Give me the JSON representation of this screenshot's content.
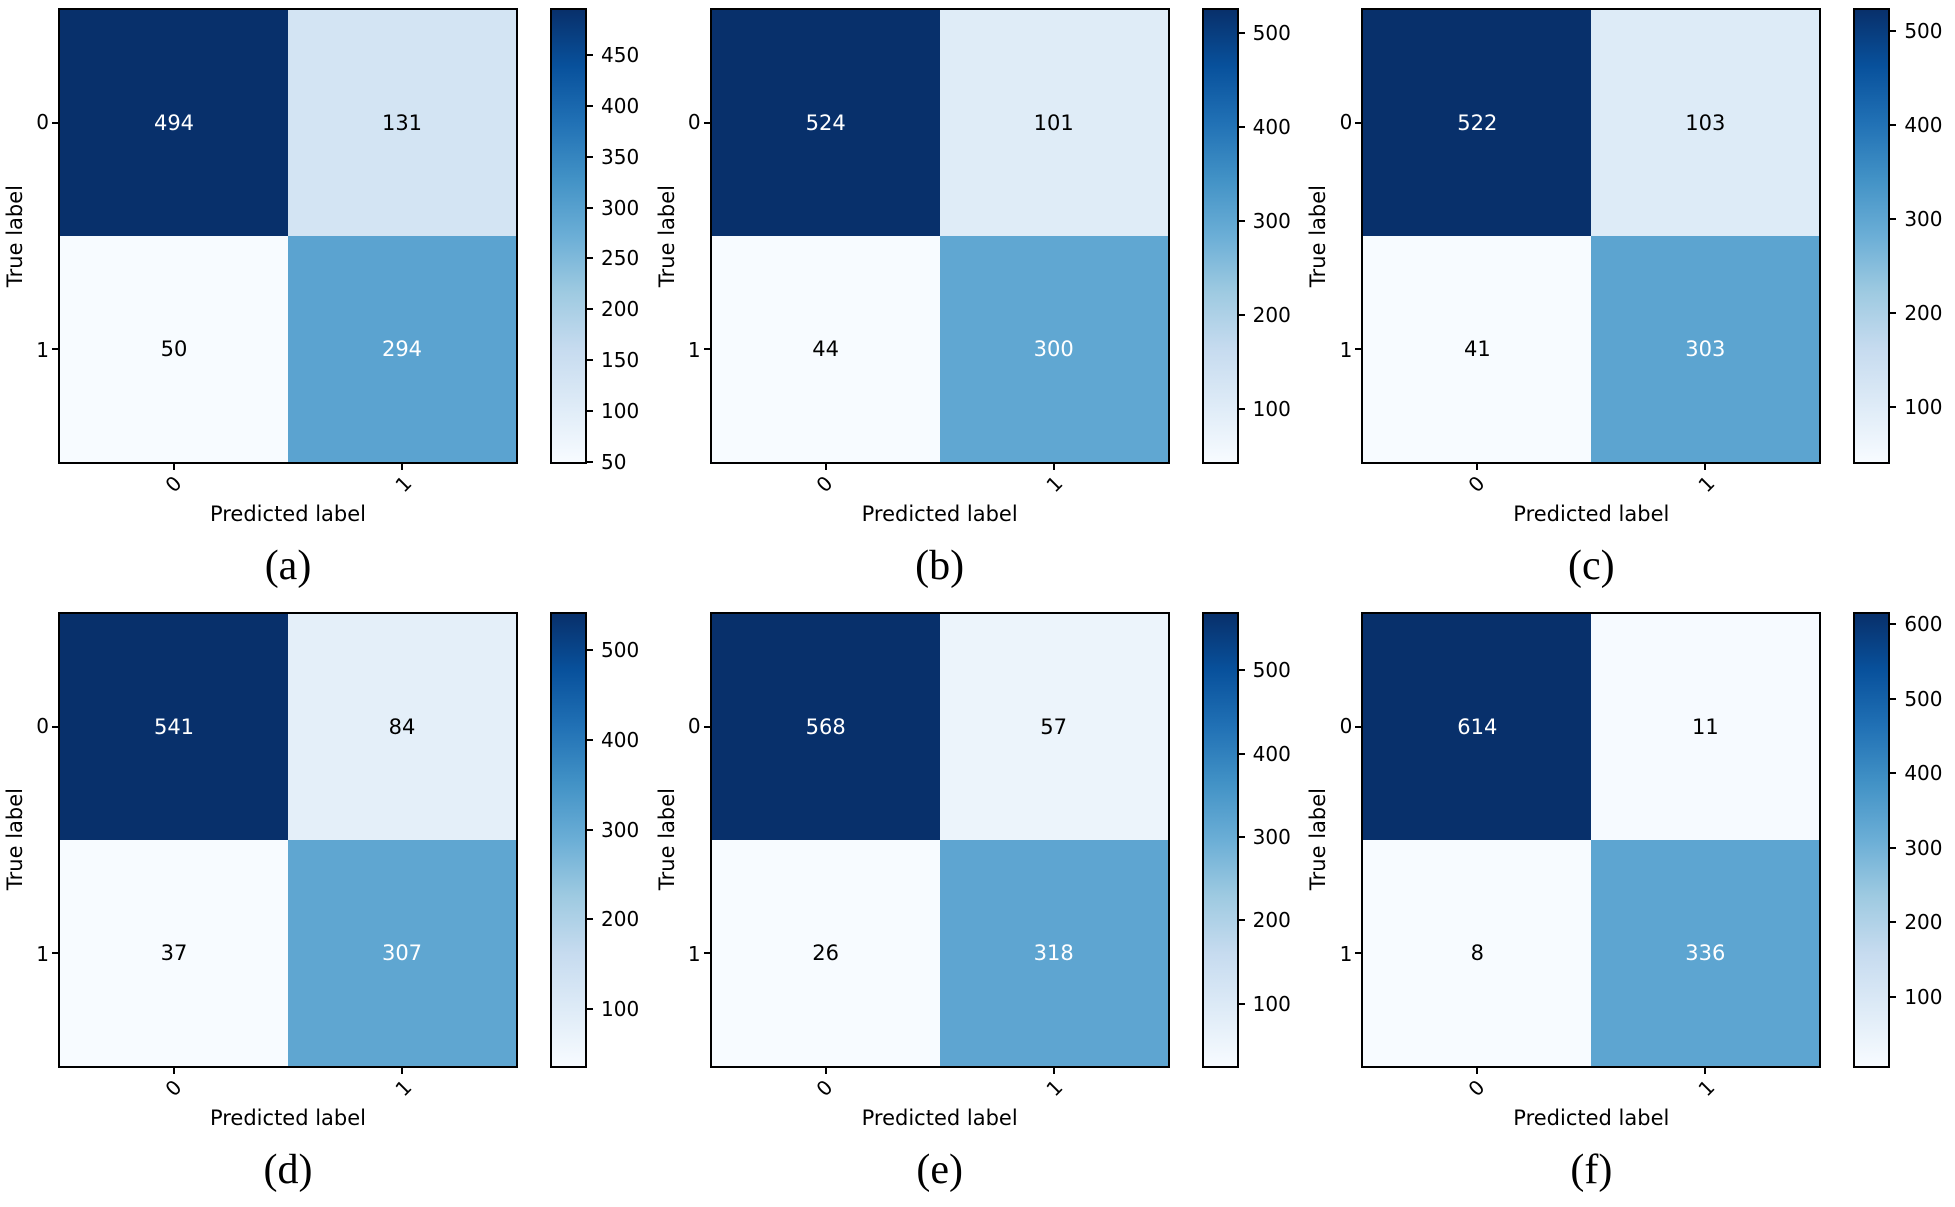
{
  "figure": {
    "background": "#ffffff",
    "colormap": "Blues",
    "colormap_stops": [
      "#f7fbff",
      "#deebf7",
      "#c6dbef",
      "#9ecae1",
      "#6baed6",
      "#4292c6",
      "#2171b5",
      "#08519c",
      "#08306b"
    ],
    "frame_color": "#000000",
    "text_color_light": "#ffffff",
    "text_color_dark": "#000000"
  },
  "chart_data": [
    {
      "type": "heatmap",
      "caption": "(a)",
      "xlabel": "Predicted label",
      "ylabel": "True label",
      "x_tick_labels": [
        "0",
        "1"
      ],
      "y_tick_labels": [
        "0",
        "1"
      ],
      "matrix": [
        [
          494,
          131
        ],
        [
          50,
          294
        ]
      ],
      "vmin": 50,
      "vmax": 494,
      "colorbar_ticks": [
        50,
        100,
        150,
        200,
        250,
        300,
        350,
        400,
        450
      ],
      "legend_position": "right",
      "grid": false
    },
    {
      "type": "heatmap",
      "caption": "(b)",
      "xlabel": "Predicted label",
      "ylabel": "True label",
      "x_tick_labels": [
        "0",
        "1"
      ],
      "y_tick_labels": [
        "0",
        "1"
      ],
      "matrix": [
        [
          524,
          101
        ],
        [
          44,
          300
        ]
      ],
      "vmin": 44,
      "vmax": 524,
      "colorbar_ticks": [
        100,
        200,
        300,
        400,
        500
      ],
      "legend_position": "right",
      "grid": false
    },
    {
      "type": "heatmap",
      "caption": "(c)",
      "xlabel": "Predicted label",
      "ylabel": "True label",
      "x_tick_labels": [
        "0",
        "1"
      ],
      "y_tick_labels": [
        "0",
        "1"
      ],
      "matrix": [
        [
          522,
          103
        ],
        [
          41,
          303
        ]
      ],
      "vmin": 41,
      "vmax": 522,
      "colorbar_ticks": [
        100,
        200,
        300,
        400,
        500
      ],
      "legend_position": "right",
      "grid": false
    },
    {
      "type": "heatmap",
      "caption": "(d)",
      "xlabel": "Predicted label",
      "ylabel": "True label",
      "x_tick_labels": [
        "0",
        "1"
      ],
      "y_tick_labels": [
        "0",
        "1"
      ],
      "matrix": [
        [
          541,
          84
        ],
        [
          37,
          307
        ]
      ],
      "vmin": 37,
      "vmax": 541,
      "colorbar_ticks": [
        100,
        200,
        300,
        400,
        500
      ],
      "legend_position": "right",
      "grid": false
    },
    {
      "type": "heatmap",
      "caption": "(e)",
      "xlabel": "Predicted label",
      "ylabel": "True label",
      "x_tick_labels": [
        "0",
        "1"
      ],
      "y_tick_labels": [
        "0",
        "1"
      ],
      "matrix": [
        [
          568,
          57
        ],
        [
          26,
          318
        ]
      ],
      "vmin": 26,
      "vmax": 568,
      "colorbar_ticks": [
        100,
        200,
        300,
        400,
        500
      ],
      "legend_position": "right",
      "grid": false
    },
    {
      "type": "heatmap",
      "caption": "(f)",
      "xlabel": "Predicted label",
      "ylabel": "True label",
      "x_tick_labels": [
        "0",
        "1"
      ],
      "y_tick_labels": [
        "0",
        "1"
      ],
      "matrix": [
        [
          614,
          11
        ],
        [
          8,
          336
        ]
      ],
      "vmin": 8,
      "vmax": 614,
      "colorbar_ticks": [
        100,
        200,
        300,
        400,
        500,
        600
      ],
      "legend_position": "right",
      "grid": false
    }
  ]
}
